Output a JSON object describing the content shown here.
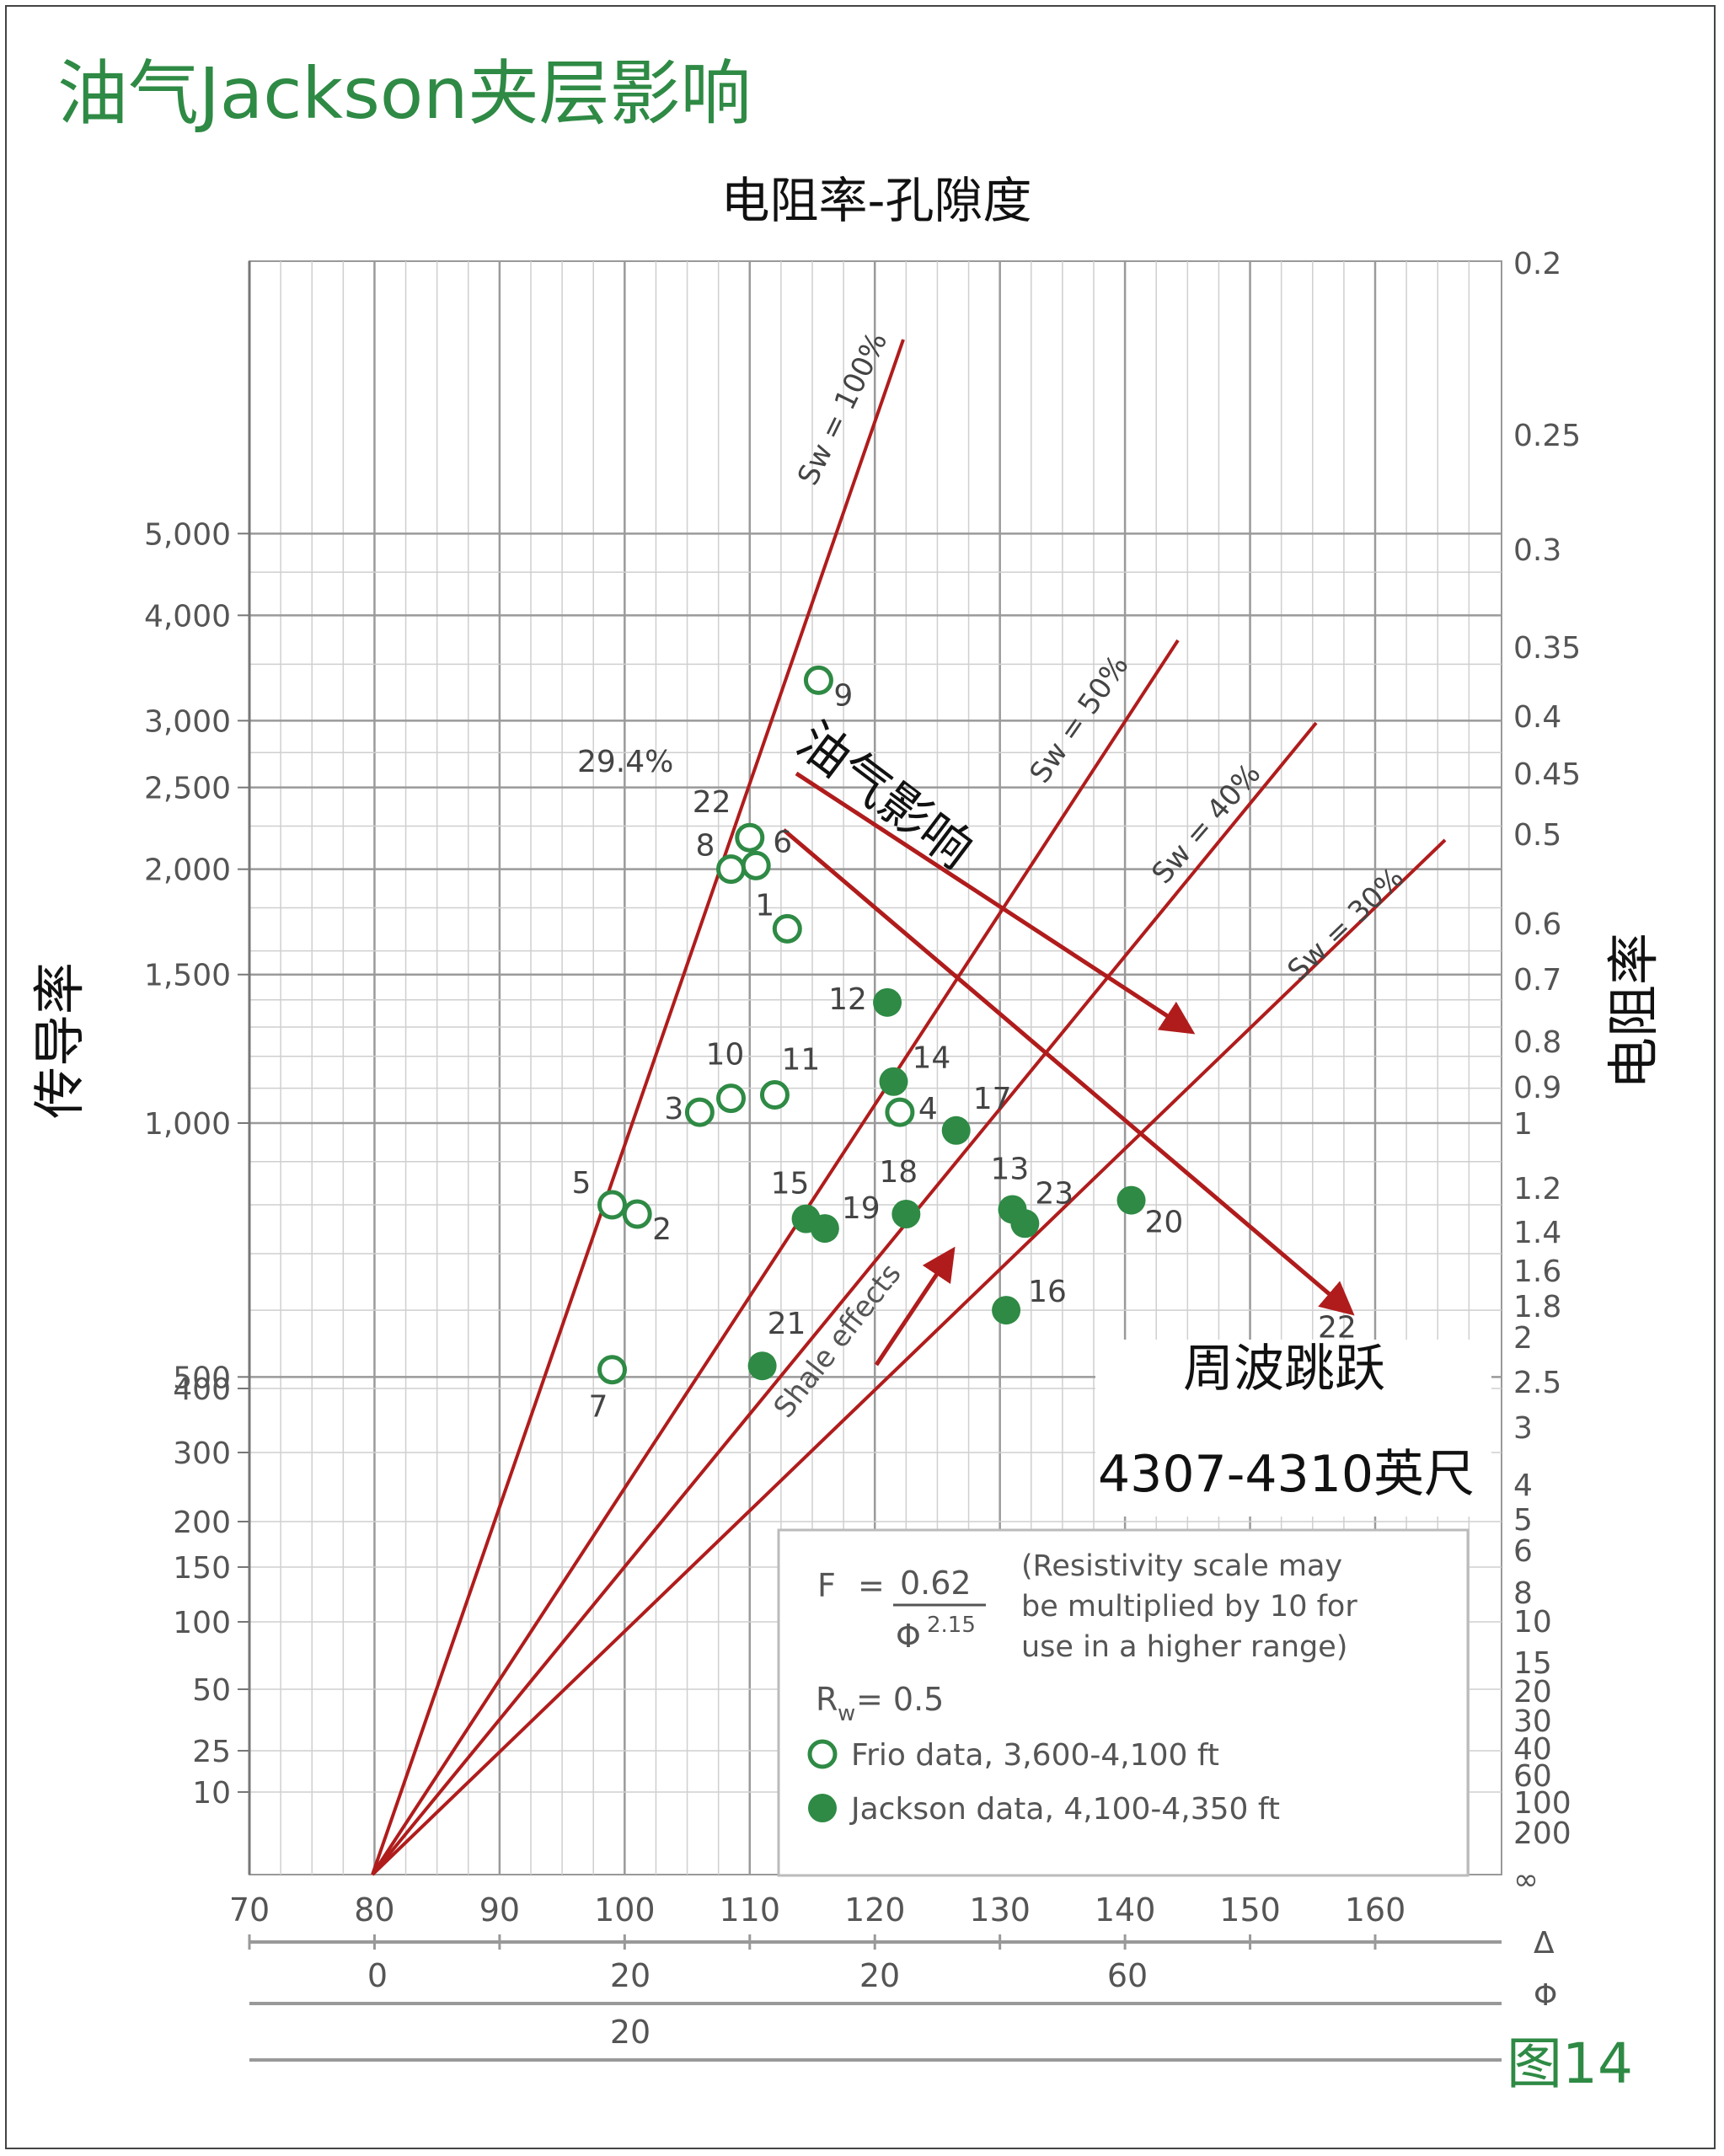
{
  "page_title": "油气Jackson夹层影响",
  "figure_label": "图14",
  "colors": {
    "accent_green": "#2e8a44",
    "line_red": "#b01c1c",
    "grid": "#aaaaaa"
  },
  "chart_data": {
    "type": "scatter",
    "title": "电阻率-孔隙度",
    "ylabel_left": "传导率",
    "ylabel_right": "电阻率",
    "x_axis": {
      "label": "Δ",
      "ticks": [
        "70",
        "80",
        "90",
        "100",
        "110",
        "120",
        "130",
        "140",
        "150",
        "160"
      ],
      "range": [
        70,
        160
      ]
    },
    "phi_axis": {
      "label": "Φ",
      "ticks": [
        "0",
        "20",
        "20",
        "60"
      ]
    },
    "extra_axis_ticks": [
      "20"
    ],
    "left_axis_ticks": [
      "5,000",
      "4,000",
      "3,000",
      "2,500",
      "2,000",
      "1,500",
      "1,000",
      "500",
      "400",
      "300",
      "200",
      "150",
      "100",
      "50",
      "25",
      "10"
    ],
    "right_axis_ticks": [
      "0.2",
      "0.25",
      "0.3",
      "0.35",
      "0.4",
      "0.45",
      "0.5",
      "0.6",
      "0.7",
      "0.8",
      "0.9",
      "1",
      "1.2",
      "1.4",
      "1.6",
      "1.8",
      "2",
      "2.5",
      "3",
      "4",
      "5",
      "6",
      "8",
      "10",
      "15",
      "20",
      "30",
      "40",
      "60",
      "100",
      "200",
      "∞"
    ],
    "sw_lines": [
      {
        "label": "Sw = 100%"
      },
      {
        "label": "Sw = 50%"
      },
      {
        "label": "Sw = 40%"
      },
      {
        "label": "Sw = 30%"
      }
    ],
    "series": [
      {
        "name": "Frio data, 3,600-4,100 ft",
        "marker": "open-circle",
        "points": [
          {
            "label": "1",
            "x": 113,
            "y": 1700
          },
          {
            "label": "2",
            "x": 101,
            "y": 780
          },
          {
            "label": "3",
            "x": 106,
            "y": 1030
          },
          {
            "label": "4",
            "x": 122,
            "y": 1030
          },
          {
            "label": "5",
            "x": 99,
            "y": 800
          },
          {
            "label": "6",
            "x": 110.5,
            "y": 2020
          },
          {
            "label": "7",
            "x": 99,
            "y": 510
          },
          {
            "label": "8",
            "x": 108.5,
            "y": 2000
          },
          {
            "label": "9",
            "x": 115.5,
            "y": 3350
          },
          {
            "label": "10",
            "x": 108.5,
            "y": 1070
          },
          {
            "label": "11",
            "x": 112,
            "y": 1080
          },
          {
            "label": "22",
            "x": 110,
            "y": 2180
          }
        ]
      },
      {
        "name": "Jackson data, 4,100-4,350 ft",
        "marker": "filled-circle",
        "points": [
          {
            "label": "12",
            "x": 121,
            "y": 1390
          },
          {
            "label": "13",
            "x": 131,
            "y": 790
          },
          {
            "label": "14",
            "x": 121.5,
            "y": 1120
          },
          {
            "label": "15",
            "x": 114.5,
            "y": 770
          },
          {
            "label": "16",
            "x": 130.5,
            "y": 600
          },
          {
            "label": "17",
            "x": 126.5,
            "y": 980
          },
          {
            "label": "18",
            "x": 122.5,
            "y": 780
          },
          {
            "label": "19",
            "x": 116,
            "y": 750
          },
          {
            "label": "20",
            "x": 140.5,
            "y": 810
          },
          {
            "label": "21",
            "x": 111,
            "y": 440
          },
          {
            "label": "22",
            "x": 160,
            "y": 520
          },
          {
            "label": "23",
            "x": 132,
            "y": 760
          }
        ]
      }
    ],
    "annotations": {
      "porosity_point": "29.4%",
      "hydrocarbon_effect": "油气影响",
      "shale_effects": "Shale effects",
      "cycle_skip": "周波跳跃",
      "depth": "4307-4310英尺"
    },
    "legend": {
      "formula_F": "F",
      "formula_eq": "=",
      "formula_num": "0.62",
      "formula_den": "Φ",
      "formula_exp": "2.15",
      "note_lines": [
        "(Resistivity scale may",
        "be multiplied by 10 for",
        "use in a higher range)"
      ],
      "rw_label": "R",
      "rw_sub": "w",
      "rw_value": "=  0.5",
      "frio_label": "Frio data, 3,600-4,100 ft",
      "jackson_label": "Jackson data, 4,100-4,350 ft",
      "placement": "bottom-right"
    }
  }
}
